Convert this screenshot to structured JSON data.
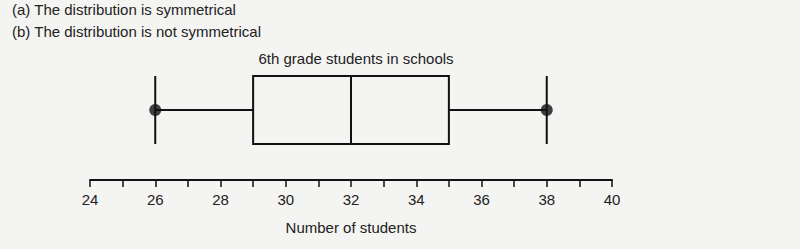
{
  "chart_data": {
    "type": "boxplot",
    "title": "6th grade students in schools",
    "annotations": [
      "(a) The distribution is symmetrical",
      "(b) The distribution is not symmetrical"
    ],
    "xlabel": "Number of students",
    "stats": {
      "min": 26,
      "q1": 29,
      "median": 32,
      "q3": 35,
      "max": 38
    },
    "orientation": "horizontal",
    "color": "#111111",
    "xlim": [
      24,
      40
    ],
    "xticks": [
      24,
      26,
      28,
      30,
      32,
      34,
      36,
      38,
      40
    ],
    "grid": false
  }
}
